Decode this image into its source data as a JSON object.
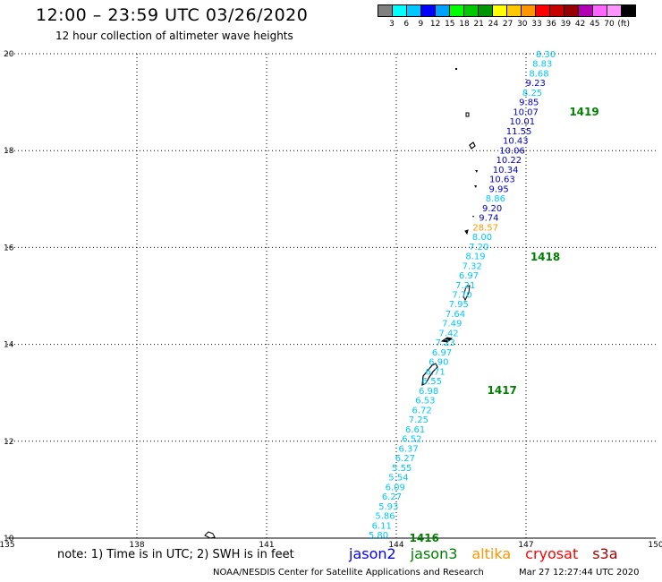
{
  "header": {
    "title": "12:00 – 23:59 UTC 03/26/2020",
    "subtitle": "12 hour collection of altimeter wave heights"
  },
  "legend": {
    "colors": [
      "#808080",
      "#00ffff",
      "#00c8ff",
      "#0000ff",
      "#00a0ff",
      "#00ff00",
      "#00c800",
      "#009600",
      "#ffff00",
      "#ffc800",
      "#ff9600",
      "#ff0000",
      "#c80000",
      "#960000",
      "#b400b4",
      "#ff64ff",
      "#ff96ff",
      "#000000"
    ],
    "labels": [
      "3",
      "6",
      "9",
      "12",
      "15",
      "18",
      "21",
      "24",
      "27",
      "30",
      "33",
      "36",
      "39",
      "42",
      "45",
      "70",
      "(ft)"
    ],
    "unit": "(ft)"
  },
  "map": {
    "x_ticks": [
      "135",
      "138",
      "141",
      "144",
      "147",
      "150"
    ],
    "y_ticks": [
      "20",
      "18",
      "16",
      "14",
      "12",
      "10"
    ],
    "x_range": [
      135,
      150
    ],
    "y_range": [
      10,
      20
    ],
    "pass_labels": [
      {
        "text": "1419",
        "lon": 148.0,
        "lat": 18.8
      },
      {
        "text": "1418",
        "lon": 147.1,
        "lat": 15.8
      },
      {
        "text": "1417",
        "lon": 146.1,
        "lat": 13.05
      },
      {
        "text": "1416",
        "lon": 144.3,
        "lat": 10.0
      }
    ],
    "wave_heights": [
      {
        "v": "8.30",
        "c": "#00c8ff"
      },
      {
        "v": "8.83",
        "c": "#00c8ff"
      },
      {
        "v": "8.68",
        "c": "#00c8ff"
      },
      {
        "v": "9.23",
        "c": "#0000cc"
      },
      {
        "v": "8.25",
        "c": "#00c8ff"
      },
      {
        "v": "9.85",
        "c": "#0000cc"
      },
      {
        "v": "10.07",
        "c": "#0000cc"
      },
      {
        "v": "10.01",
        "c": "#0000cc"
      },
      {
        "v": "11.55",
        "c": "#0000cc"
      },
      {
        "v": "10.43",
        "c": "#0000cc"
      },
      {
        "v": "10.06",
        "c": "#0000cc"
      },
      {
        "v": "10.22",
        "c": "#0000cc"
      },
      {
        "v": "10.34",
        "c": "#0000cc"
      },
      {
        "v": "10.63",
        "c": "#0000cc"
      },
      {
        "v": "9.95",
        "c": "#0000cc"
      },
      {
        "v": "8.86",
        "c": "#00c8ff"
      },
      {
        "v": "9.20",
        "c": "#0000cc"
      },
      {
        "v": "9.74",
        "c": "#0000cc"
      },
      {
        "v": "28.57",
        "c": "#ff9600"
      },
      {
        "v": "8.00",
        "c": "#00c8ff"
      },
      {
        "v": "7.20",
        "c": "#00c8ff"
      },
      {
        "v": "8.19",
        "c": "#00c8ff"
      },
      {
        "v": "7.32",
        "c": "#00c8ff"
      },
      {
        "v": "6.97",
        "c": "#00c8ff"
      },
      {
        "v": "7.21",
        "c": "#00c8ff"
      },
      {
        "v": "7.70",
        "c": "#00c8ff"
      },
      {
        "v": "7.95",
        "c": "#00c8ff"
      },
      {
        "v": "7.64",
        "c": "#00c8ff"
      },
      {
        "v": "7.49",
        "c": "#00c8ff"
      },
      {
        "v": "7.42",
        "c": "#00c8ff"
      },
      {
        "v": "7.23",
        "c": "#00c8ff"
      },
      {
        "v": "6.97",
        "c": "#00c8ff"
      },
      {
        "v": "6.90",
        "c": "#00c8ff"
      },
      {
        "v": "6.71",
        "c": "#00c8ff"
      },
      {
        "v": "6.55",
        "c": "#00c8ff"
      },
      {
        "v": "6.98",
        "c": "#00c8ff"
      },
      {
        "v": "6.53",
        "c": "#00c8ff"
      },
      {
        "v": "6.72",
        "c": "#00c8ff"
      },
      {
        "v": "7.25",
        "c": "#00c8ff"
      },
      {
        "v": "6.61",
        "c": "#00c8ff"
      },
      {
        "v": "6.52",
        "c": "#00c8ff"
      },
      {
        "v": "6.37",
        "c": "#00c8ff"
      },
      {
        "v": "6.27",
        "c": "#00c8ff"
      },
      {
        "v": "5.55",
        "c": "#00c8ff"
      },
      {
        "v": "5.54",
        "c": "#00c8ff"
      },
      {
        "v": "6.09",
        "c": "#00c8ff"
      },
      {
        "v": "6.27",
        "c": "#00c8ff"
      },
      {
        "v": "5.93",
        "c": "#00c8ff"
      },
      {
        "v": "5.86",
        "c": "#00c8ff"
      },
      {
        "v": "6.11",
        "c": "#00c8ff"
      },
      {
        "v": "5.80",
        "c": "#00c8ff"
      }
    ]
  },
  "footer": {
    "note": "note:  1) Time is in UTC;  2) SWH is in feet",
    "satellites": [
      {
        "name": "jason2",
        "color": "#0000ff"
      },
      {
        "name": "jason3",
        "color": "#008000"
      },
      {
        "name": "altika",
        "color": "#ff9600"
      },
      {
        "name": "cryosat",
        "color": "#ff0000"
      },
      {
        "name": "s3a",
        "color": "#a00000"
      }
    ],
    "credit": "NOAA/NESDIS Center for Satellite Applications and Research",
    "timestamp": "Mar 27 12:27:44 UTC 2020"
  }
}
